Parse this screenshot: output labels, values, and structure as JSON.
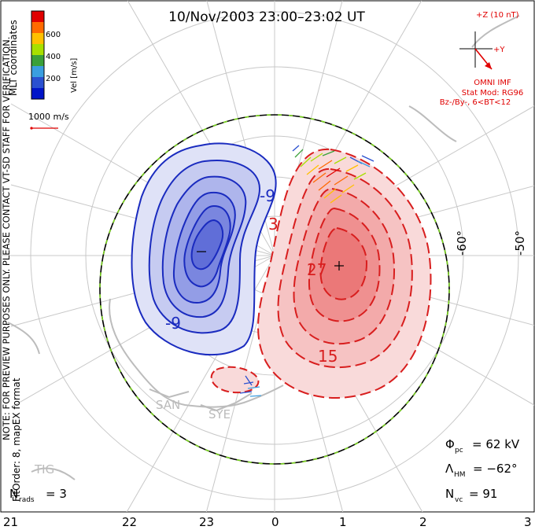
{
  "title": "10/Nov/2003 23:00–23:02 UT",
  "colorbar": {
    "label": "Vel [m/s]",
    "coords_label": "MLT coordinates",
    "ticks": [
      "600",
      "400",
      "200"
    ],
    "colors": [
      "#e00000",
      "#ff6a00",
      "#ffc000",
      "#a8e000",
      "#3aa03a",
      "#3a9ee0",
      "#2a50d0",
      "#0014c8"
    ]
  },
  "speed_reference": "1000 m/s",
  "imf": {
    "scale_label": "+Z (10 nT)",
    "y_label": "+Y",
    "source": "OMNI IMF",
    "model": "Stat Mod: RG96",
    "conditions": "Bz-/By-, 6<BT<12"
  },
  "watermark": "NOTE: FOR PREVIEW PURPOSES ONLY. PLEASE CONTACT VT-SD STAFF FOR VERIFICATION.",
  "fit_note": "FitOrder: 8, mapEX format",
  "lat_labels": [
    "-60°",
    "-50°"
  ],
  "contours": {
    "neg": [
      "-9",
      "-9"
    ],
    "pos": [
      "3",
      "27",
      "15"
    ]
  },
  "stations": [
    "SAN",
    "SYE",
    "TIG"
  ],
  "stats": {
    "phi_pc": "Φ",
    "phi_sub": "pc",
    "phi_val": "= 62 kV",
    "lambda": "Λ",
    "lambda_sub": "HM",
    "lambda_val": "= −62°",
    "nvc": "N",
    "nvc_sub": "vc",
    "nvc_val": "= 91",
    "nrads": "N",
    "nrads_sub": "rads",
    "nrads_val": "= 3"
  },
  "mlt_labels": [
    "21",
    "22",
    "23",
    "0",
    "1",
    "2",
    "3"
  ]
}
